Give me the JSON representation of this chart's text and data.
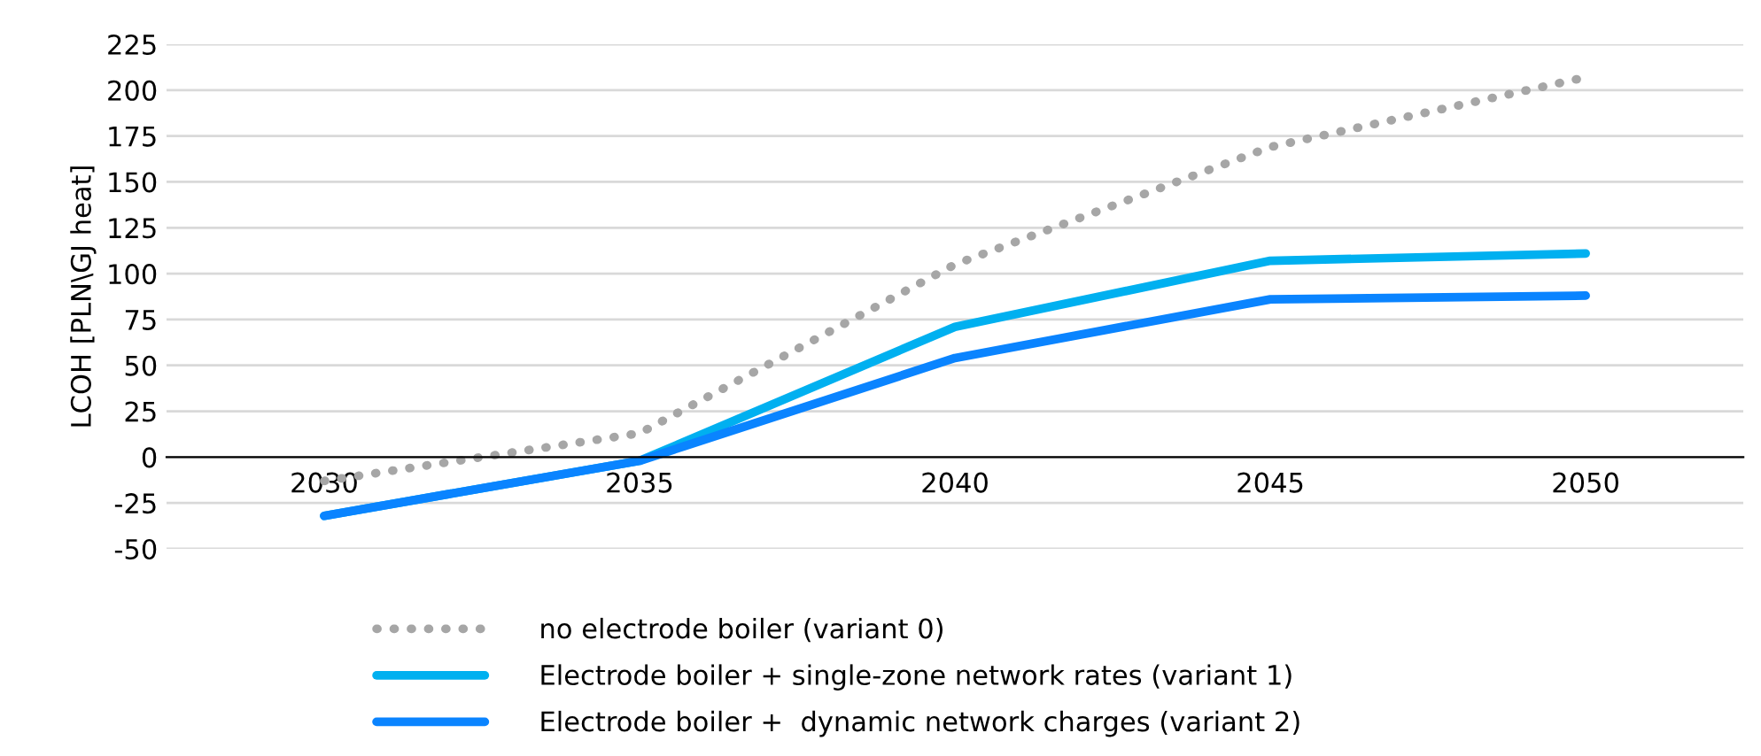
{
  "chart_data": {
    "type": "line",
    "ylabel": "LCOH [PLN\\GJ heat]",
    "categories": [
      "2030",
      "2035",
      "2040",
      "2045",
      "2050"
    ],
    "series": [
      {
        "name": "no electrode boiler (variant 0)",
        "color": "#a6a6a6",
        "line_style": "dotted",
        "values": [
          -13,
          13,
          105,
          169,
          207
        ]
      },
      {
        "name": "Electrode boiler + single-zone network rates (variant 1)",
        "color": "#00b0f0",
        "line_style": "solid",
        "values": [
          -32,
          -2,
          71,
          107,
          111
        ]
      },
      {
        "name": "Electrode boiler +  dynamic network charges (variant 2)",
        "color": "#0a84ff",
        "line_style": "solid",
        "values": [
          -32,
          -2,
          54,
          86,
          88
        ]
      }
    ],
    "ylim": [
      -50,
      225
    ],
    "yticks": [
      225,
      200,
      175,
      150,
      125,
      100,
      75,
      50,
      25,
      0,
      -25,
      -50
    ],
    "grid": "y",
    "legend": "bottom",
    "marker": "none"
  }
}
